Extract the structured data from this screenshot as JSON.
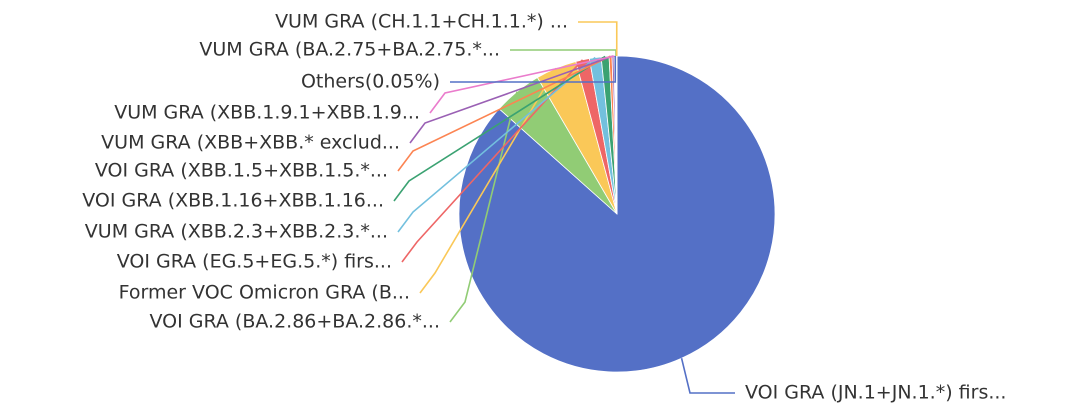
{
  "chart_data": {
    "type": "pie",
    "categories": [
      "VOI GRA (JN.1+JN.1.*) firs...",
      "VOI GRA (BA.2.86+BA.2.86.*...",
      "Former VOC Omicron GRA (B...",
      "VOI GRA (EG.5+EG.5.*) firs...",
      "VUM GRA (XBB.2.3+XBB.2.3.*...",
      "VOI GRA (XBB.1.16+XBB.1.16...",
      "VOI GRA (XBB.1.5+XBB.1.5.*...",
      "VUM GRA (XBB+XBB.* exclud...",
      "VUM GRA (XBB.1.9.1+XBB.1.9...",
      "Others(0.05%)",
      "VUM GRA (BA.2.75+BA.2.75.*...",
      "VUM GRA (CH.1.1+CH.1.1.*) ..."
    ],
    "values": [
      86.6,
      5.0,
      4.2,
      1.4,
      1.2,
      0.8,
      0.3,
      0.2,
      0.1,
      0.05,
      0.1,
      0.05
    ],
    "colors": [
      "#5470c6",
      "#91cc75",
      "#fac858",
      "#ee6666",
      "#73c0de",
      "#3ba272",
      "#fc8452",
      "#9a60b4",
      "#ea7ccc",
      "#5470c6",
      "#91cc75",
      "#fac858"
    ]
  }
}
